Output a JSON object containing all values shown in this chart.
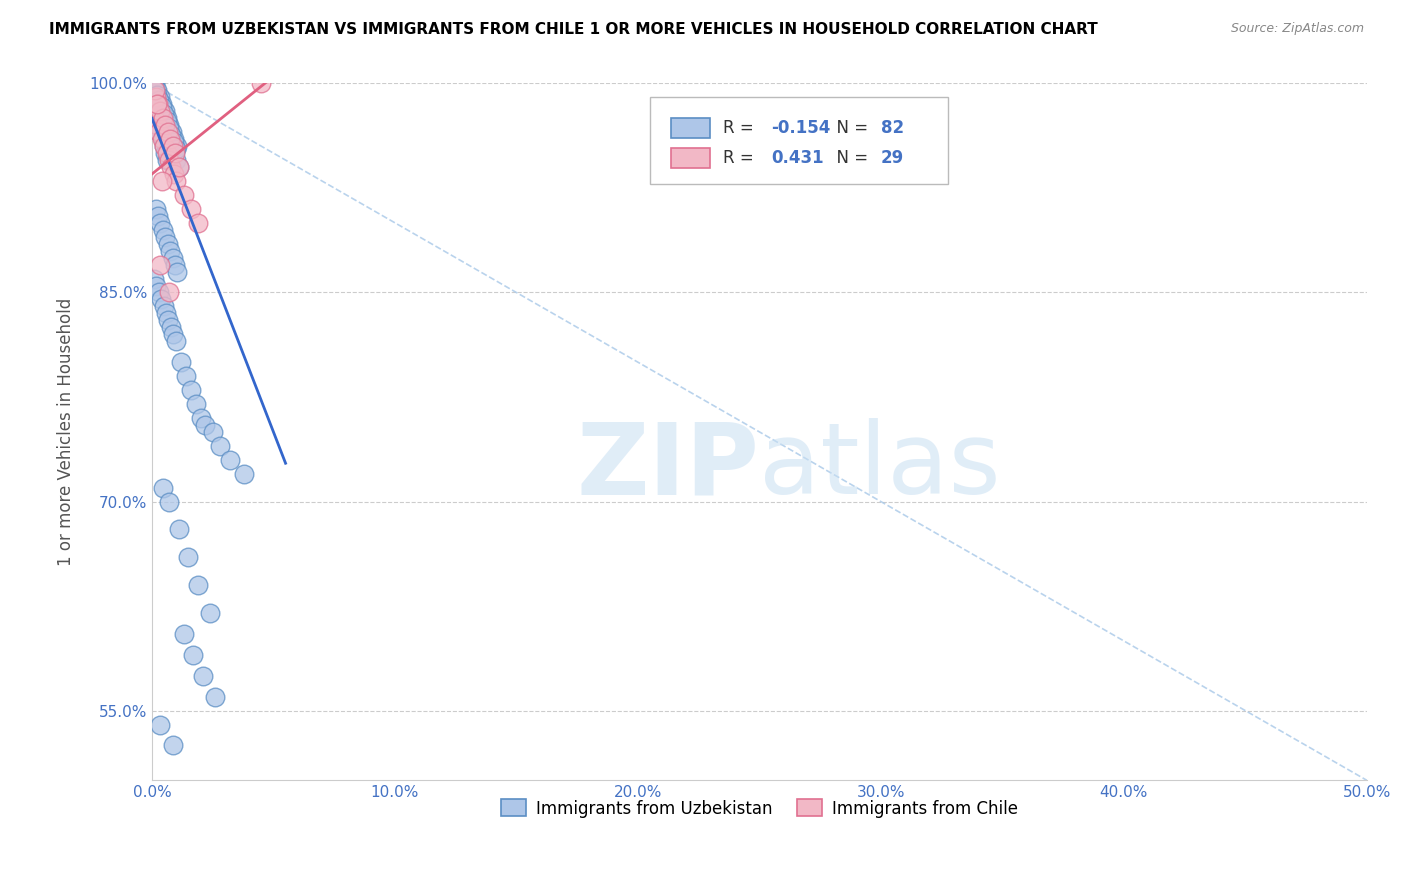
{
  "title": "IMMIGRANTS FROM UZBEKISTAN VS IMMIGRANTS FROM CHILE 1 OR MORE VEHICLES IN HOUSEHOLD CORRELATION CHART",
  "source": "Source: ZipAtlas.com",
  "ylabel": "1 or more Vehicles in Household",
  "xlim": [
    0.0,
    50.0
  ],
  "ylim": [
    50.0,
    100.0
  ],
  "x_ticks": [
    0.0,
    10.0,
    20.0,
    30.0,
    40.0,
    50.0
  ],
  "y_ticks": [
    55.0,
    70.0,
    85.0,
    100.0
  ],
  "uzbekistan_color": "#aec6e8",
  "chile_color": "#f2b8c6",
  "uzbekistan_edge_color": "#5b8ec4",
  "chile_edge_color": "#e07090",
  "uzbekistan_line_color": "#3366cc",
  "chile_line_color": "#e06080",
  "diag_line_color": "#a8c8e8",
  "R_uzbekistan": -0.154,
  "N_uzbekistan": 82,
  "R_chile": 0.431,
  "N_chile": 29,
  "legend_uzbekistan": "Immigrants from Uzbekistan",
  "legend_chile": "Immigrants from Chile",
  "watermark_zip": "ZIP",
  "watermark_atlas": "atlas",
  "tick_color": "#4472c4",
  "uzbekistan_x": [
    0.15,
    0.2,
    0.25,
    0.3,
    0.35,
    0.4,
    0.45,
    0.5,
    0.55,
    0.6,
    0.18,
    0.28,
    0.38,
    0.48,
    0.58,
    0.68,
    0.78,
    0.88,
    0.98,
    1.1,
    0.12,
    0.22,
    0.32,
    0.42,
    0.52,
    0.62,
    0.72,
    0.82,
    0.92,
    1.02,
    0.1,
    0.2,
    0.3,
    0.4,
    0.5,
    0.6,
    0.7,
    0.8,
    0.9,
    1.0,
    0.15,
    0.25,
    0.35,
    0.45,
    0.55,
    0.65,
    0.75,
    0.85,
    0.95,
    1.05,
    0.08,
    0.18,
    0.28,
    0.38,
    0.48,
    0.58,
    0.68,
    0.78,
    0.88,
    0.98,
    1.2,
    1.4,
    1.6,
    1.8,
    2.0,
    2.2,
    2.5,
    2.8,
    3.2,
    3.8,
    0.45,
    0.7,
    1.1,
    1.5,
    1.9,
    2.4,
    1.3,
    1.7,
    2.1,
    2.6,
    0.35,
    0.85
  ],
  "uzbekistan_y": [
    99.5,
    98.5,
    97.0,
    96.5,
    98.0,
    97.5,
    96.0,
    95.5,
    95.0,
    94.5,
    99.0,
    98.0,
    97.5,
    97.0,
    96.5,
    96.0,
    95.5,
    95.0,
    94.5,
    94.0,
    100.0,
    99.5,
    99.0,
    98.5,
    98.0,
    97.5,
    97.0,
    96.5,
    96.0,
    95.5,
    99.8,
    99.2,
    98.8,
    98.3,
    97.8,
    97.3,
    96.8,
    96.3,
    95.8,
    95.3,
    91.0,
    90.5,
    90.0,
    89.5,
    89.0,
    88.5,
    88.0,
    87.5,
    87.0,
    86.5,
    86.0,
    85.5,
    85.0,
    84.5,
    84.0,
    83.5,
    83.0,
    82.5,
    82.0,
    81.5,
    80.0,
    79.0,
    78.0,
    77.0,
    76.0,
    75.5,
    75.0,
    74.0,
    73.0,
    72.0,
    71.0,
    70.0,
    68.0,
    66.0,
    64.0,
    62.0,
    60.5,
    59.0,
    57.5,
    56.0,
    54.0,
    52.5
  ],
  "chile_x": [
    0.1,
    0.2,
    0.3,
    0.4,
    0.5,
    0.6,
    0.7,
    0.8,
    0.9,
    1.0,
    0.15,
    0.25,
    0.35,
    0.45,
    0.55,
    0.65,
    0.75,
    0.85,
    0.95,
    1.1,
    1.3,
    1.6,
    1.9,
    4.5,
    0.12,
    0.22,
    0.32,
    0.72,
    0.42
  ],
  "chile_y": [
    97.5,
    97.0,
    96.5,
    96.0,
    95.5,
    95.0,
    94.5,
    94.0,
    93.5,
    93.0,
    99.0,
    98.5,
    98.0,
    97.5,
    97.0,
    96.5,
    96.0,
    95.5,
    95.0,
    94.0,
    92.0,
    91.0,
    90.0,
    100.0,
    99.5,
    98.5,
    87.0,
    85.0,
    93.0
  ]
}
